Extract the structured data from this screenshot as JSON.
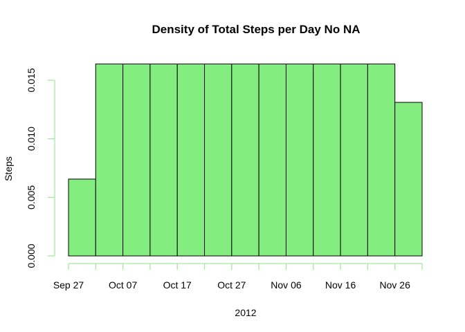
{
  "chart_data": {
    "type": "bar",
    "title": "Density of Total Steps per Day No NA",
    "xlabel": "2012",
    "ylabel": "Steps",
    "bin_start": "2012-09-27",
    "bin_width_days": 5,
    "values": [
      0.00656,
      0.01639,
      0.01639,
      0.01639,
      0.01639,
      0.01639,
      0.01639,
      0.01639,
      0.01639,
      0.01639,
      0.01639,
      0.01639,
      0.01311
    ],
    "x_ticks": [
      {
        "date": "2012-09-27",
        "label": "Sep 27"
      },
      {
        "date": "2012-10-07",
        "label": "Oct 07"
      },
      {
        "date": "2012-10-17",
        "label": "Oct 17"
      },
      {
        "date": "2012-10-27",
        "label": "Oct 27"
      },
      {
        "date": "2012-11-06",
        "label": "Nov 06"
      },
      {
        "date": "2012-11-16",
        "label": "Nov 16"
      },
      {
        "date": "2012-11-26",
        "label": "Nov 26"
      }
    ],
    "x_minor_ticks": [
      "2012-09-27",
      "2012-10-02",
      "2012-10-07",
      "2012-10-12",
      "2012-10-17",
      "2012-10-22",
      "2012-10-27",
      "2012-11-01",
      "2012-11-06",
      "2012-11-11",
      "2012-11-16",
      "2012-11-21",
      "2012-11-26",
      "2012-12-01"
    ],
    "y_ticks": [
      {
        "value": 0.0,
        "label": "0.000"
      },
      {
        "value": 0.005,
        "label": "0.005"
      },
      {
        "value": 0.01,
        "label": "0.010"
      },
      {
        "value": 0.015,
        "label": "0.015"
      }
    ],
    "xlim": [
      "2012-09-22",
      "2012-12-03"
    ],
    "ylim": [
      0,
      0.017
    ],
    "bar_color": "#83ED80",
    "axis_color": "#A8E6A1",
    "grid": false,
    "legend": "none"
  }
}
